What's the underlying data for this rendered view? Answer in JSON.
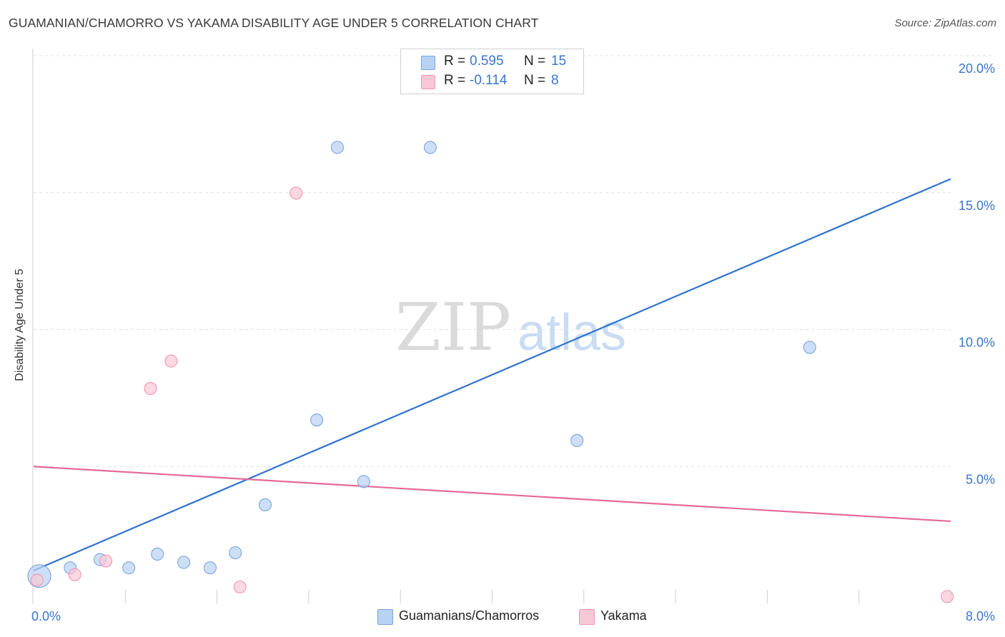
{
  "header": {
    "title": "GUAMANIAN/CHAMORRO VS YAKAMA DISABILITY AGE UNDER 5 CORRELATION CHART",
    "source": "Source: ZipAtlas.com"
  },
  "watermark": {
    "zip": "ZIP",
    "atlas": "atlas"
  },
  "legend": {
    "rows": [
      {
        "r_label": "R =",
        "r_value": "0.595",
        "n_label": "N =",
        "n_value": "15",
        "color": "#b8d2f4",
        "border": "#7ba4de"
      },
      {
        "r_label": "R =",
        "r_value": "-0.114",
        "n_label": "N =",
        "n_value": "8",
        "color": "#f9c7d6",
        "border": "#ee97b2"
      }
    ]
  },
  "bottom_legend": {
    "items": [
      {
        "label": "Guamanians/Chamorros",
        "color": "#b8d2f4",
        "border": "#7ba4de"
      },
      {
        "label": "Yakama",
        "color": "#f9c7d6",
        "border": "#ee97b2"
      }
    ]
  },
  "chart_data": {
    "type": "scatter",
    "title": "GUAMANIAN/CHAMORRO VS YAKAMA DISABILITY AGE UNDER 5 CORRELATION CHART",
    "xlabel": "",
    "ylabel": "Disability Age Under 5",
    "xlim": [
      0,
      8
    ],
    "ylim": [
      0,
      20
    ],
    "x_tick_labels": [
      "0.0%",
      "8.0%"
    ],
    "y_ticks": [
      5,
      10,
      15,
      20
    ],
    "y_tick_labels": [
      "5.0%",
      "10.0%",
      "15.0%",
      "20.0%"
    ],
    "grid": true,
    "series": [
      {
        "name": "Guamanians/Chamorros",
        "color": "#b8d2f4",
        "border": "#7ba4de",
        "line_color": "#2f72d0",
        "points": [
          {
            "x": 0.05,
            "y": 1.0,
            "big": true
          },
          {
            "x": 0.32,
            "y": 1.3
          },
          {
            "x": 0.58,
            "y": 1.6
          },
          {
            "x": 0.83,
            "y": 1.3
          },
          {
            "x": 1.08,
            "y": 1.8
          },
          {
            "x": 1.31,
            "y": 1.5
          },
          {
            "x": 1.54,
            "y": 1.3
          },
          {
            "x": 1.76,
            "y": 1.85
          },
          {
            "x": 2.02,
            "y": 3.6
          },
          {
            "x": 2.47,
            "y": 6.7
          },
          {
            "x": 2.65,
            "y": 16.65
          },
          {
            "x": 2.88,
            "y": 4.45
          },
          {
            "x": 3.46,
            "y": 16.65
          },
          {
            "x": 4.74,
            "y": 5.95
          },
          {
            "x": 6.77,
            "y": 9.35
          }
        ],
        "trend": {
          "x": [
            0.0,
            8.0
          ],
          "y": [
            1.2,
            15.5
          ]
        }
      },
      {
        "name": "Yakama",
        "color": "#f9c7d6",
        "border": "#ee97b2",
        "line_color": "#e5699a",
        "points": [
          {
            "x": 0.03,
            "y": 0.85
          },
          {
            "x": 0.36,
            "y": 1.05
          },
          {
            "x": 0.63,
            "y": 1.55
          },
          {
            "x": 1.02,
            "y": 7.85
          },
          {
            "x": 1.2,
            "y": 8.85
          },
          {
            "x": 1.8,
            "y": 0.6
          },
          {
            "x": 2.29,
            "y": 14.98
          },
          {
            "x": 7.97,
            "y": 0.25
          }
        ],
        "trend": {
          "x": [
            0.0,
            8.0
          ],
          "y": [
            5.0,
            3.0
          ]
        }
      }
    ]
  }
}
